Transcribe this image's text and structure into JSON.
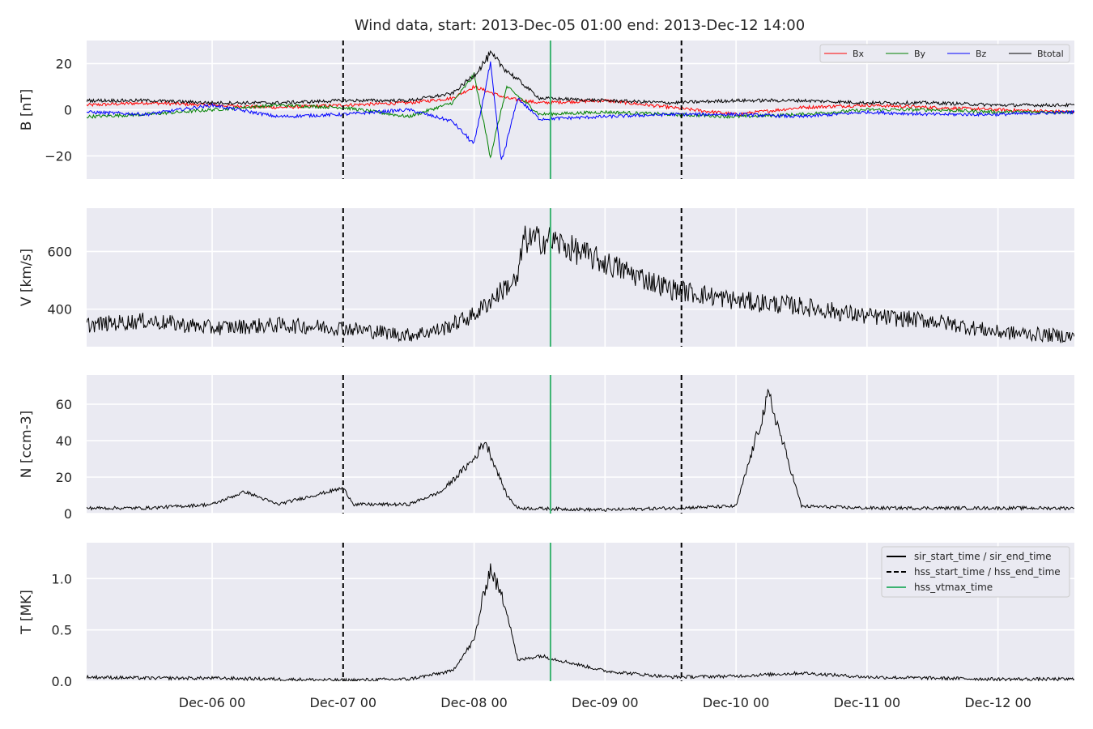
{
  "chart_data": {
    "type": "line",
    "title": "Wind data, start: 2013-Dec-05 01:00  end: 2013-Dec-12 14:00",
    "x_range": [
      "2013-12-05T01:00",
      "2013-12-12T14:00"
    ],
    "x_ticks": [
      "Dec-06 00",
      "Dec-07 00",
      "Dec-08 00",
      "Dec-09 00",
      "Dec-10 00",
      "Dec-11 00",
      "Dec-12 00"
    ],
    "grid": true,
    "event_lines": [
      {
        "name": "hss_start_time / hss_end_time",
        "time": "2013-12-07T00:00",
        "style": "dashed",
        "color": "#000000"
      },
      {
        "name": "hss_vtmax_time",
        "time": "2013-12-08T14:00",
        "style": "solid",
        "color": "#3cb371"
      },
      {
        "name": "hss_start_time / hss_end_time",
        "time": "2013-12-09T14:00",
        "style": "dashed",
        "color": "#000000"
      }
    ],
    "panels": [
      {
        "ylabel": "B [nT]",
        "ylim": [
          -30,
          30
        ],
        "yticks": [
          -20,
          0,
          20
        ],
        "ytick_labels": [
          "−20",
          "0",
          "20"
        ],
        "legend": "top-right",
        "series": [
          {
            "name": "Bx",
            "color": "#ff0000",
            "points": [
              [
                "2013-12-05T01:00",
                2
              ],
              [
                "2013-12-05T12:00",
                3
              ],
              [
                "2013-12-06T00:00",
                2
              ],
              [
                "2013-12-06T12:00",
                1
              ],
              [
                "2013-12-07T00:00",
                2
              ],
              [
                "2013-12-07T12:00",
                3
              ],
              [
                "2013-12-07T20:00",
                5
              ],
              [
                "2013-12-08T00:00",
                10
              ],
              [
                "2013-12-08T06:00",
                5
              ],
              [
                "2013-12-08T12:00",
                3
              ],
              [
                "2013-12-09T00:00",
                4
              ],
              [
                "2013-12-09T12:00",
                1
              ],
              [
                "2013-12-10T00:00",
                -2
              ],
              [
                "2013-12-10T12:00",
                1
              ],
              [
                "2013-12-11T00:00",
                2
              ],
              [
                "2013-12-11T12:00",
                1
              ],
              [
                "2013-12-12T00:00",
                0
              ],
              [
                "2013-12-12T14:00",
                -1
              ]
            ]
          },
          {
            "name": "By",
            "color": "#008000",
            "points": [
              [
                "2013-12-05T01:00",
                -3
              ],
              [
                "2013-12-05T12:00",
                -2
              ],
              [
                "2013-12-06T00:00",
                0
              ],
              [
                "2013-12-06T12:00",
                2
              ],
              [
                "2013-12-07T00:00",
                1
              ],
              [
                "2013-12-07T12:00",
                -3
              ],
              [
                "2013-12-07T20:00",
                3
              ],
              [
                "2013-12-08T00:00",
                15
              ],
              [
                "2013-12-08T03:00",
                -20
              ],
              [
                "2013-12-08T06:00",
                10
              ],
              [
                "2013-12-08T12:00",
                -2
              ],
              [
                "2013-12-09T00:00",
                -1
              ],
              [
                "2013-12-09T12:00",
                -2
              ],
              [
                "2013-12-10T00:00",
                -3
              ],
              [
                "2013-12-10T12:00",
                -2
              ],
              [
                "2013-12-11T00:00",
                0
              ],
              [
                "2013-12-11T12:00",
                0
              ],
              [
                "2013-12-12T00:00",
                -1
              ],
              [
                "2013-12-12T14:00",
                -1
              ]
            ]
          },
          {
            "name": "Bz",
            "color": "#0000ff",
            "points": [
              [
                "2013-12-05T01:00",
                -1
              ],
              [
                "2013-12-05T12:00",
                -2
              ],
              [
                "2013-12-06T00:00",
                2
              ],
              [
                "2013-12-06T12:00",
                -3
              ],
              [
                "2013-12-07T00:00",
                -2
              ],
              [
                "2013-12-07T12:00",
                0
              ],
              [
                "2013-12-07T20:00",
                -5
              ],
              [
                "2013-12-08T00:00",
                -15
              ],
              [
                "2013-12-08T03:00",
                20
              ],
              [
                "2013-12-08T05:00",
                -23
              ],
              [
                "2013-12-08T08:00",
                5
              ],
              [
                "2013-12-08T12:00",
                -4
              ],
              [
                "2013-12-09T00:00",
                -3
              ],
              [
                "2013-12-09T12:00",
                -2
              ],
              [
                "2013-12-10T00:00",
                -2
              ],
              [
                "2013-12-10T12:00",
                -3
              ],
              [
                "2013-12-11T00:00",
                -1
              ],
              [
                "2013-12-11T12:00",
                -2
              ],
              [
                "2013-12-12T00:00",
                -2
              ],
              [
                "2013-12-12T14:00",
                -1
              ]
            ]
          },
          {
            "name": "Btotal",
            "color": "#000000",
            "points": [
              [
                "2013-12-05T01:00",
                4
              ],
              [
                "2013-12-05T12:00",
                4
              ],
              [
                "2013-12-06T00:00",
                3
              ],
              [
                "2013-12-06T12:00",
                3
              ],
              [
                "2013-12-07T00:00",
                4
              ],
              [
                "2013-12-07T12:00",
                4
              ],
              [
                "2013-12-07T20:00",
                7
              ],
              [
                "2013-12-08T00:00",
                15
              ],
              [
                "2013-12-08T03:00",
                24
              ],
              [
                "2013-12-08T06:00",
                17
              ],
              [
                "2013-12-08T12:00",
                5
              ],
              [
                "2013-12-09T00:00",
                4
              ],
              [
                "2013-12-09T12:00",
                3
              ],
              [
                "2013-12-10T00:00",
                4
              ],
              [
                "2013-12-10T12:00",
                4
              ],
              [
                "2013-12-11T00:00",
                3
              ],
              [
                "2013-12-11T12:00",
                3
              ],
              [
                "2013-12-12T00:00",
                2
              ],
              [
                "2013-12-12T14:00",
                2
              ]
            ]
          }
        ]
      },
      {
        "ylabel": "V [km/s]",
        "ylim": [
          270,
          750
        ],
        "yticks": [
          400,
          600
        ],
        "ytick_labels": [
          "400",
          "600"
        ],
        "series": [
          {
            "name": "V",
            "color": "#000000",
            "points": [
              [
                "2013-12-05T01:00",
                345
              ],
              [
                "2013-12-05T12:00",
                360
              ],
              [
                "2013-12-06T00:00",
                335
              ],
              [
                "2013-12-06T12:00",
                345
              ],
              [
                "2013-12-07T00:00",
                335
              ],
              [
                "2013-12-07T12:00",
                310
              ],
              [
                "2013-12-07T18:00",
                330
              ],
              [
                "2013-12-08T00:00",
                380
              ],
              [
                "2013-12-08T06:00",
                480
              ],
              [
                "2013-12-08T08:00",
                500
              ],
              [
                "2013-12-08T09:00",
                640
              ],
              [
                "2013-12-08T14:00",
                640
              ],
              [
                "2013-12-09T00:00",
                560
              ],
              [
                "2013-12-09T12:00",
                470
              ],
              [
                "2013-12-10T00:00",
                430
              ],
              [
                "2013-12-10T12:00",
                410
              ],
              [
                "2013-12-11T00:00",
                375
              ],
              [
                "2013-12-11T12:00",
                360
              ],
              [
                "2013-12-12T00:00",
                320
              ],
              [
                "2013-12-12T14:00",
                305
              ]
            ]
          }
        ]
      },
      {
        "ylabel": "N [ccm-3]",
        "ylim": [
          0,
          76
        ],
        "yticks": [
          0,
          20,
          40,
          60
        ],
        "ytick_labels": [
          "0",
          "20",
          "40",
          "60"
        ],
        "series": [
          {
            "name": "N",
            "color": "#000000",
            "points": [
              [
                "2013-12-05T01:00",
                3
              ],
              [
                "2013-12-05T12:00",
                3
              ],
              [
                "2013-12-06T00:00",
                5
              ],
              [
                "2013-12-06T06:00",
                12
              ],
              [
                "2013-12-06T12:00",
                5
              ],
              [
                "2013-12-07T00:00",
                14
              ],
              [
                "2013-12-07T02:00",
                5
              ],
              [
                "2013-12-07T12:00",
                5
              ],
              [
                "2013-12-07T18:00",
                12
              ],
              [
                "2013-12-08T00:00",
                30
              ],
              [
                "2013-12-08T02:00",
                40
              ],
              [
                "2013-12-08T06:00",
                10
              ],
              [
                "2013-12-08T08:00",
                3
              ],
              [
                "2013-12-09T00:00",
                2
              ],
              [
                "2013-12-09T12:00",
                3
              ],
              [
                "2013-12-10T00:00",
                4
              ],
              [
                "2013-12-10T06:00",
                65
              ],
              [
                "2013-12-10T12:00",
                4
              ],
              [
                "2013-12-11T00:00",
                3
              ],
              [
                "2013-12-11T12:00",
                3
              ],
              [
                "2013-12-12T00:00",
                3
              ],
              [
                "2013-12-12T14:00",
                3
              ]
            ]
          }
        ]
      },
      {
        "ylabel": "T [MK]",
        "ylim": [
          0,
          1.35
        ],
        "yticks": [
          0.0,
          0.5,
          1.0
        ],
        "ytick_labels": [
          "0.0",
          "0.5",
          "1.0"
        ],
        "legend": "top-right",
        "legend_entries": [
          "sir_start_time / sir_end_time",
          "hss_start_time / hss_end_time",
          "hss_vtmax_time"
        ],
        "series": [
          {
            "name": "T",
            "color": "#000000",
            "points": [
              [
                "2013-12-05T01:00",
                0.04
              ],
              [
                "2013-12-05T12:00",
                0.03
              ],
              [
                "2013-12-06T00:00",
                0.03
              ],
              [
                "2013-12-06T12:00",
                0.02
              ],
              [
                "2013-12-07T00:00",
                0.01
              ],
              [
                "2013-12-07T12:00",
                0.02
              ],
              [
                "2013-12-07T20:00",
                0.1
              ],
              [
                "2013-12-08T00:00",
                0.4
              ],
              [
                "2013-12-08T02:00",
                0.9
              ],
              [
                "2013-12-08T03:00",
                1.1
              ],
              [
                "2013-12-08T06:00",
                0.7
              ],
              [
                "2013-12-08T08:00",
                0.2
              ],
              [
                "2013-12-08T12:00",
                0.25
              ],
              [
                "2013-12-09T00:00",
                0.1
              ],
              [
                "2013-12-09T12:00",
                0.04
              ],
              [
                "2013-12-10T00:00",
                0.05
              ],
              [
                "2013-12-10T12:00",
                0.08
              ],
              [
                "2013-12-11T00:00",
                0.04
              ],
              [
                "2013-12-11T12:00",
                0.03
              ],
              [
                "2013-12-12T00:00",
                0.02
              ],
              [
                "2013-12-12T14:00",
                0.02
              ]
            ]
          }
        ]
      }
    ]
  }
}
